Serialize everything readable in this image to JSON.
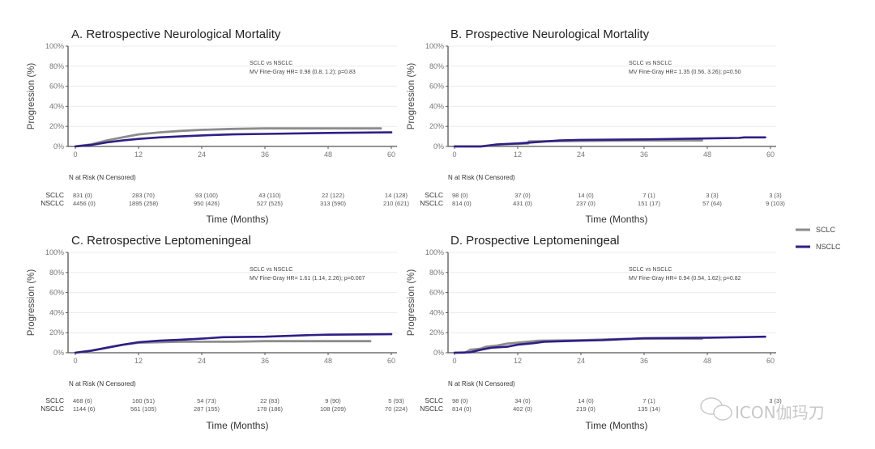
{
  "legend": [
    {
      "name": "SCLC",
      "color": "#8c8c8c"
    },
    {
      "name": "NSCLC",
      "color": "#2e1f86"
    }
  ],
  "watermark": "ICON伽玛刀",
  "chart_data": [
    {
      "type": "line",
      "title": "A. Retrospective Neurological Mortality",
      "xlabel": "Time (Months)",
      "ylabel": "Progression (%)",
      "xlim": [
        0,
        60
      ],
      "ylim": [
        0,
        100
      ],
      "xticks": [
        "0",
        "12",
        "24",
        "36",
        "48",
        "60"
      ],
      "yticks": [
        "0%",
        "20%",
        "40%",
        "60%",
        "80%",
        "100%"
      ],
      "grid": true,
      "annotation": [
        "SCLC vs NSCLC",
        "MV Fine-Gray HR= 0.98 (0.8, 1.2); p=0.83"
      ],
      "series": [
        {
          "name": "SCLC",
          "x": [
            0,
            3,
            6,
            9,
            12,
            16,
            20,
            24,
            30,
            36,
            48,
            58
          ],
          "y": [
            0,
            2,
            6,
            9,
            12,
            14,
            15.5,
            16.5,
            17.5,
            18,
            18,
            18
          ]
        },
        {
          "name": "NSCLC",
          "x": [
            0,
            3,
            6,
            9,
            12,
            16,
            20,
            24,
            30,
            36,
            48,
            60
          ],
          "y": [
            0,
            1.5,
            4,
            6,
            7.5,
            9,
            10,
            11,
            12,
            12.5,
            13.5,
            14
          ]
        }
      ],
      "risk_table": {
        "header": "N at Risk (N Censored)",
        "groups": [
          {
            "name": "SCLC",
            "values": [
              "831 (0)",
              "283 (70)",
              "93 (100)",
              "43 (110)",
              "22 (122)",
              "14 (128)"
            ]
          },
          {
            "name": "NSCLC",
            "values": [
              "4456 (0)",
              "1895 (258)",
              "950 (426)",
              "527 (525)",
              "313 (590)",
              "210 (621)"
            ]
          }
        ]
      }
    },
    {
      "type": "line",
      "title": "B. Prospective Neurological Mortality",
      "xlabel": "Time (Months)",
      "ylabel": "Progression (%)",
      "xlim": [
        0,
        60
      ],
      "ylim": [
        0,
        100
      ],
      "xticks": [
        "0",
        "12",
        "24",
        "36",
        "48",
        "60"
      ],
      "yticks": [
        "0%",
        "20%",
        "40%",
        "60%",
        "80%",
        "100%"
      ],
      "grid": true,
      "annotation": [
        "SCLC vs NSCLC",
        "MV Fine-Gray HR= 1.35 (0.56, 3.26); p=0.50"
      ],
      "series": [
        {
          "name": "SCLC",
          "x": [
            0,
            5,
            9,
            14,
            14.1,
            24,
            36,
            47
          ],
          "y": [
            0,
            0,
            2,
            3,
            5,
            5.5,
            6,
            6
          ]
        },
        {
          "name": "NSCLC",
          "x": [
            0,
            5,
            8,
            12,
            16,
            20,
            24,
            36,
            48,
            54,
            55,
            59
          ],
          "y": [
            0,
            0,
            2,
            3,
            4.5,
            6,
            6.5,
            7,
            8,
            8.5,
            9,
            9
          ]
        }
      ],
      "risk_table": {
        "header": "N at Risk (N Censored)",
        "groups": [
          {
            "name": "SCLC",
            "values": [
              "98 (0)",
              "37 (0)",
              "14 (0)",
              "7 (1)",
              "3 (3)",
              "3 (3)"
            ]
          },
          {
            "name": "NSCLC",
            "values": [
              "814 (0)",
              "431 (0)",
              "237 (0)",
              "151 (17)",
              "57 (64)",
              "9 (103)"
            ]
          }
        ]
      }
    },
    {
      "type": "line",
      "title": "C. Retrospective Leptomeningeal",
      "xlabel": "Time (Months)",
      "ylabel": "Progression (%)",
      "xlim": [
        0,
        60
      ],
      "ylim": [
        0,
        100
      ],
      "xticks": [
        "0",
        "12",
        "24",
        "36",
        "48",
        "60"
      ],
      "yticks": [
        "0%",
        "20%",
        "40%",
        "60%",
        "80%",
        "100%"
      ],
      "grid": true,
      "annotation": [
        "SCLC vs NSCLC",
        "MV Fine-Gray HR= 1.61 (1.14, 2.26); p=0.007"
      ],
      "series": [
        {
          "name": "SCLC",
          "x": [
            0,
            3,
            6,
            9,
            12,
            16,
            20,
            24,
            30,
            36,
            48,
            56
          ],
          "y": [
            0,
            2,
            5,
            8,
            10,
            10.5,
            11,
            11,
            11,
            11.5,
            11.5,
            11.5
          ]
        },
        {
          "name": "NSCLC",
          "x": [
            0,
            3,
            6,
            9,
            12,
            16,
            20,
            24,
            28,
            36,
            44,
            48,
            60
          ],
          "y": [
            0,
            2,
            5,
            8,
            10.5,
            12,
            13,
            14,
            15.5,
            16,
            17.5,
            18,
            18.5
          ]
        }
      ],
      "risk_table": {
        "header": "N at Risk (N Censored)",
        "groups": [
          {
            "name": "SCLC",
            "values": [
              "468 (6)",
              "160 (51)",
              "54 (73)",
              "22 (83)",
              "9 (90)",
              "5 (93)"
            ]
          },
          {
            "name": "NSCLC",
            "values": [
              "1144 (6)",
              "561 (105)",
              "287 (155)",
              "178 (186)",
              "108 (209)",
              "70 (224)"
            ]
          }
        ]
      }
    },
    {
      "type": "line",
      "title": "D. Prospective Leptomeningeal",
      "xlabel": "Time (Months)",
      "ylabel": "Progression (%)",
      "xlim": [
        0,
        60
      ],
      "ylim": [
        0,
        100
      ],
      "xticks": [
        "0",
        "12",
        "24",
        "36",
        "48",
        "60"
      ],
      "yticks": [
        "0%",
        "20%",
        "40%",
        "60%",
        "80%",
        "100%"
      ],
      "grid": true,
      "annotation": [
        "SCLC vs NSCLC",
        "MV Fine-Gray HR= 0.94 (0.54, 1.62); p=0.82"
      ],
      "series": [
        {
          "name": "SCLC",
          "x": [
            0,
            2,
            3,
            5,
            6,
            8,
            10,
            12,
            14,
            16,
            24,
            30,
            36,
            47
          ],
          "y": [
            0,
            0,
            3,
            4,
            6,
            7,
            9,
            10,
            11,
            12,
            12.5,
            13.5,
            14,
            14
          ]
        },
        {
          "name": "NSCLC",
          "x": [
            0,
            3,
            5,
            7,
            10,
            12,
            15,
            17,
            24,
            28,
            36,
            48,
            54,
            59
          ],
          "y": [
            0,
            0.5,
            3,
            5,
            6,
            8,
            9.5,
            11,
            12,
            12.5,
            14.5,
            15,
            15.5,
            16
          ]
        }
      ],
      "risk_table": {
        "header": "N at Risk (N Censored)",
        "groups": [
          {
            "name": "SCLC",
            "values": [
              "98 (0)",
              "34 (0)",
              "14 (0)",
              "7 (1)",
              "",
              "3 (3)"
            ]
          },
          {
            "name": "NSCLC",
            "values": [
              "814 (0)",
              "402 (0)",
              "219 (0)",
              "135 (14)",
              "",
              ""
            ]
          }
        ]
      }
    }
  ]
}
